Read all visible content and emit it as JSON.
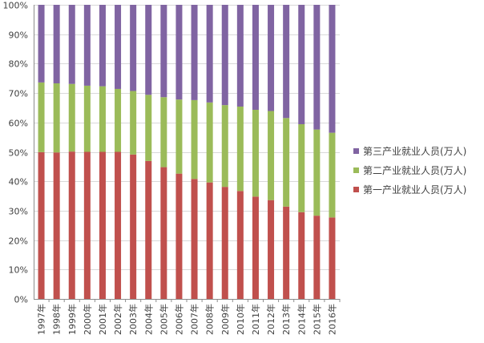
{
  "chart_data": {
    "type": "bar",
    "stacked": true,
    "normalized": true,
    "categories": [
      "1997年",
      "1998年",
      "1999年",
      "2000年",
      "2001年",
      "2002年",
      "2003年",
      "2004年",
      "2005年",
      "2006年",
      "2007年",
      "2008年",
      "2009年",
      "2010年",
      "2011年",
      "2012年",
      "2013年",
      "2014年",
      "2015年",
      "2016年"
    ],
    "series": [
      {
        "name": "第一产业就业人员(万人)",
        "color": "#c0504d",
        "values": [
          49.9,
          49.8,
          50.1,
          50.0,
          50.0,
          50.0,
          49.1,
          46.9,
          44.8,
          42.6,
          40.8,
          39.6,
          38.1,
          36.7,
          34.8,
          33.6,
          31.4,
          29.5,
          28.3,
          27.7
        ]
      },
      {
        "name": "第二产业就业人员(万人)",
        "color": "#9bbb59",
        "values": [
          23.7,
          23.5,
          23.0,
          22.5,
          22.3,
          21.4,
          21.6,
          22.5,
          23.8,
          25.2,
          26.8,
          27.2,
          27.8,
          28.7,
          29.5,
          30.3,
          30.1,
          29.9,
          29.3,
          28.8
        ]
      },
      {
        "name": "第三产业就业人员(万人)",
        "color": "#8064a2",
        "values": [
          26.4,
          26.7,
          26.9,
          27.5,
          27.7,
          28.6,
          29.3,
          30.6,
          31.4,
          32.2,
          32.4,
          33.2,
          34.1,
          34.6,
          35.7,
          36.1,
          38.5,
          40.6,
          42.4,
          43.5
        ]
      }
    ],
    "ylim": [
      0,
      100
    ],
    "yticks": [
      "0%",
      "10%",
      "20%",
      "30%",
      "40%",
      "50%",
      "60%",
      "70%",
      "80%",
      "90%",
      "100%"
    ],
    "grid": true,
    "legend_position": "right"
  }
}
